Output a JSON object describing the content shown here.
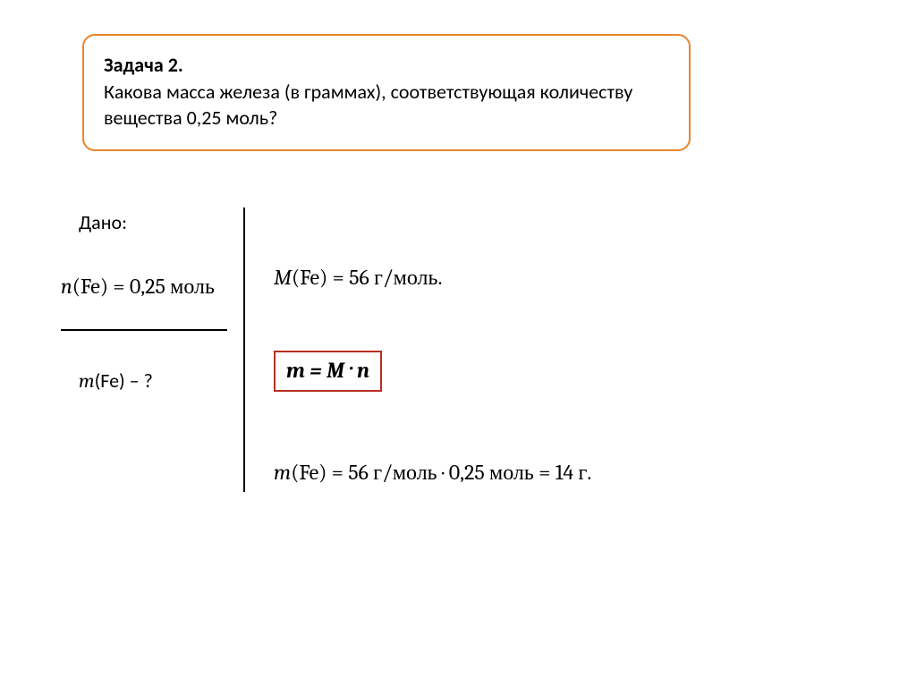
{
  "colors": {
    "box_border": "#e8852c",
    "formula_border": "#b82e1f",
    "text": "#000000",
    "background": "#ffffff"
  },
  "problem": {
    "title": "Задача 2.",
    "text": "Какова масса железа (в граммах), соответствующая количеству вещества 0,25  моль?",
    "box_radius": 14,
    "title_fontsize": 22,
    "text_fontsize": 22
  },
  "given": {
    "label": "Дано:",
    "n_symbol": "n",
    "n_element": "(Fe)",
    "n_equals": " = 0,25 моль",
    "find_symbol": "m",
    "find_element": "(Fe)",
    "find_tail": " – ?"
  },
  "solution": {
    "molar_symbol": "M",
    "molar_element": "(Fe)",
    "molar_value": " = 56 г/моль.",
    "formula": "m = M · n",
    "calc_symbol": "m",
    "calc_element": "(Fe)",
    "calc_value": " = 56 г/моль · 0,25 моль = 14 г."
  },
  "typography": {
    "body_font": "Calibri",
    "math_font": "Cambria",
    "math_fontsize": 24
  }
}
